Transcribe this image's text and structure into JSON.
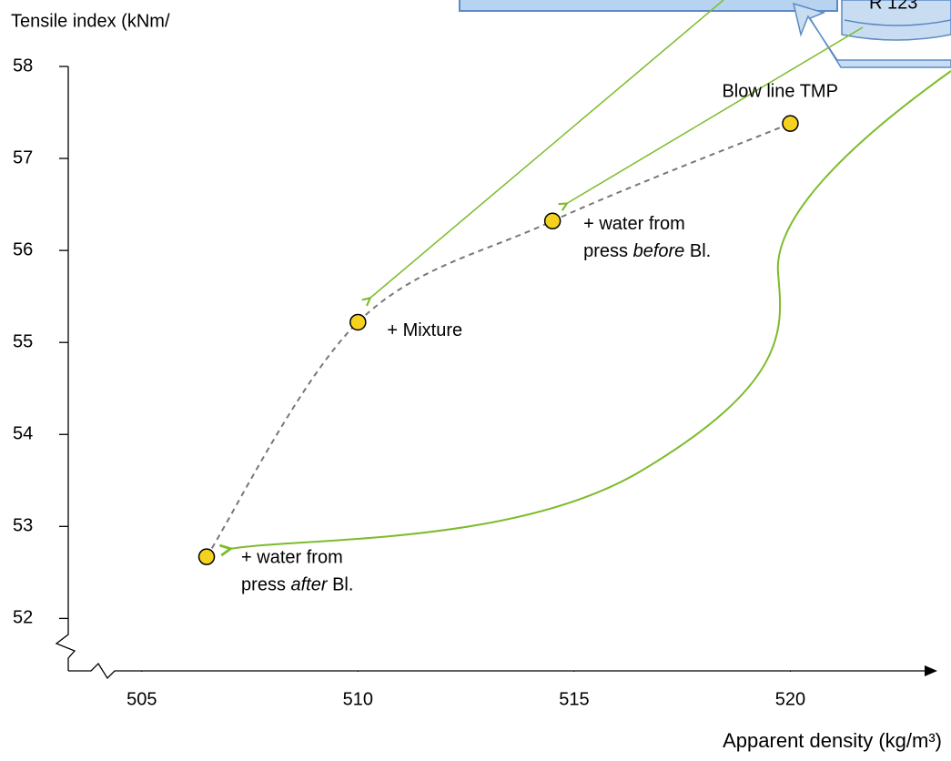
{
  "chart_data": {
    "type": "scatter",
    "y_label": "Tensile index (kNm/",
    "x_label": "Apparent density (kg/m³)",
    "xlim": [
      503.3,
      523.4
    ],
    "xticks": [
      505,
      510,
      515,
      520
    ],
    "ylim": [
      51.43,
      58
    ],
    "yticks": [
      52,
      53,
      54,
      55,
      56,
      57,
      58
    ],
    "axis_break": true,
    "series": [
      {
        "color": "#f5d21f",
        "line_color": "#777777",
        "line_style": "dashed",
        "x": [
          506.5,
          510,
          514.5,
          520
        ],
        "values": [
          52.67,
          55.22,
          56.32,
          57.38
        ]
      }
    ],
    "annotations": [
      {
        "lines": [
          [
            {
              "text": "+ water from",
              "italic": false
            }
          ],
          [
            {
              "text": "press ",
              "italic": false
            },
            {
              "text": "after",
              "italic": true
            },
            {
              "text": " Bl.",
              "italic": false
            }
          ]
        ]
      },
      {
        "lines": [
          [
            {
              "text": "+ Mixture",
              "italic": false
            }
          ]
        ]
      },
      {
        "lines": [
          [
            {
              "text": "+ water from",
              "italic": false
            }
          ],
          [
            {
              "text": "press ",
              "italic": false
            },
            {
              "text": "before",
              "italic": true
            },
            {
              "text": " Bl.",
              "italic": false
            }
          ]
        ]
      },
      {
        "lines": [
          [
            {
              "text": "Blow line TMP",
              "italic": false
            }
          ]
        ]
      }
    ]
  },
  "diagram": {
    "vessel_label": "R 123"
  }
}
